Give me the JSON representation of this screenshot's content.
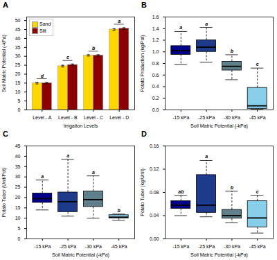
{
  "chart_data": [
    {
      "type": "bar",
      "title": "A",
      "categories": [
        "Level - A",
        "Level - B",
        "Level - C",
        "Level - D"
      ],
      "series": [
        {
          "name": "Sand",
          "color": "#FFD700",
          "values": [
            15.0,
            24.5,
            30.5,
            45.0
          ],
          "errors": [
            0.5,
            0.5,
            0.4,
            0.5
          ]
        },
        {
          "name": "Silt",
          "color": "#8B0000",
          "values": [
            15.0,
            25.2,
            30.5,
            45.5
          ],
          "errors": [
            0.4,
            0.5,
            0.4,
            0.5
          ]
        }
      ],
      "sig_labels": [
        "d",
        "c",
        "b",
        "a"
      ],
      "xlabel": "Irrigation Levels",
      "ylabel": "Soil Matric Potential (-kPa)",
      "ylim": [
        0,
        52
      ],
      "yticks": [
        0,
        5,
        10,
        15,
        20,
        25,
        30,
        35,
        40,
        45,
        50
      ],
      "legend": "upper left"
    },
    {
      "type": "box",
      "title": "B",
      "categories": [
        "-15 kPa",
        "-25 kPa",
        "-30 kPa",
        "-45 kPa"
      ],
      "colors": [
        "#00008B",
        "#1E3A8A",
        "#5F7F8A",
        "#87CEEB"
      ],
      "medians": [
        1.02,
        1.08,
        0.75,
        0.07
      ],
      "q1": [
        0.95,
        1.0,
        0.68,
        0.02
      ],
      "q3": [
        1.1,
        1.2,
        0.83,
        0.38
      ],
      "whislo": [
        0.78,
        0.82,
        0.52,
        0.015
      ],
      "whishi": [
        1.35,
        1.42,
        0.95,
        0.72
      ],
      "sig_labels": [
        "a",
        "a",
        "b",
        "c"
      ],
      "xlabel": "Soil Matric Potential (-kPa)",
      "ylabel": "Potato Production (kg/Pot)",
      "ylim": [
        0,
        1.6
      ],
      "yticks": [
        {
          "value": 0,
          "label": "0.0"
        },
        0.2,
        0.4,
        0.6,
        0.8,
        {
          "value": 1.0,
          "label": "1.0"
        },
        1.2,
        1.4,
        1.6
      ]
    },
    {
      "type": "box",
      "title": "C",
      "categories": [
        "-15 kPa",
        "-25 kPa",
        "-30 kPa",
        "-45 kPa"
      ],
      "colors": [
        "#00008B",
        "#1E3A8A",
        "#5F7F8A",
        "#87CEEB"
      ],
      "medians": [
        19.5,
        18.0,
        19.0,
        10.5
      ],
      "q1": [
        17.5,
        13.0,
        15.5,
        10.0
      ],
      "q3": [
        22.0,
        22.5,
        23.0,
        11.5
      ],
      "whislo": [
        14.0,
        11.0,
        10.0,
        9.0
      ],
      "whishi": [
        28.5,
        38.5,
        30.5,
        12.0
      ],
      "sig_labels": [
        "a",
        "a",
        "a",
        "b"
      ],
      "xlabel": "Soil Matric Potential (-kPa)",
      "ylabel": "Potato Tuber (Unit/Pot)",
      "ylim": [
        0,
        45
      ],
      "yticks": [
        0,
        5,
        10,
        15,
        20,
        25,
        30,
        35,
        40,
        45
      ]
    },
    {
      "type": "box",
      "title": "D",
      "categories": [
        "-15 kPa",
        "-25 kPa",
        "-30 kPa",
        "-45 kPa"
      ],
      "colors": [
        "#00008B",
        "#1E3A8A",
        "#5F7F8A",
        "#87CEEB"
      ],
      "medians": [
        0.058,
        0.058,
        0.04,
        0.036
      ],
      "q1": [
        0.052,
        0.045,
        0.035,
        0.02
      ],
      "q3": [
        0.065,
        0.11,
        0.05,
        0.065
      ],
      "whislo": [
        0.04,
        0.038,
        0.028,
        0.01
      ],
      "whishi": [
        0.075,
        0.135,
        0.082,
        0.075
      ],
      "sig_labels": [
        "ab",
        "a",
        "b",
        "c"
      ],
      "xlabel": "Soil Matric Potential (-kPa)",
      "ylabel": "Potato Tuber (kg/Unit)",
      "ylim": [
        0,
        0.16
      ],
      "yticks": [
        {
          "value": 0,
          "label": "0.00"
        },
        0.04,
        0.08,
        0.12,
        0.16
      ]
    }
  ]
}
